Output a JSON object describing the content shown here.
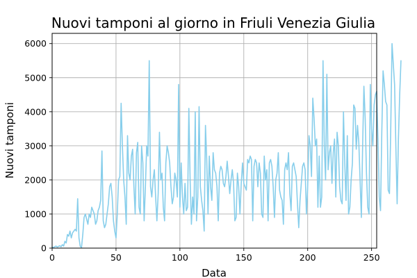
{
  "chart_data": {
    "type": "line",
    "title": "Nuovi tamponi al giorno in Friuli Venezia Giulia",
    "xlabel": "Data",
    "ylabel": "Nuovi tamponi",
    "xlim": [
      0,
      254
    ],
    "ylim": [
      0,
      6300
    ],
    "xticks": [
      0,
      50,
      100,
      150,
      200,
      250
    ],
    "yticks": [
      0,
      1000,
      2000,
      3000,
      4000,
      5000,
      6000
    ],
    "grid": true,
    "color": "#87ceeb",
    "series": [
      {
        "values": [
          30,
          20,
          40,
          60,
          30,
          50,
          70,
          40,
          100,
          60,
          200,
          150,
          400,
          350,
          500,
          300,
          450,
          500,
          550,
          500,
          1450,
          300,
          50,
          20,
          400,
          900,
          1000,
          850,
          700,
          1000,
          900,
          1200,
          1100,
          1000,
          700,
          800,
          1100,
          1200,
          1400,
          2850,
          800,
          600,
          700,
          1000,
          1300,
          1800,
          1900,
          1500,
          800,
          500,
          300,
          1000,
          2000,
          2100,
          4250,
          3000,
          2000,
          1500,
          700,
          3300,
          2200,
          2000,
          2700,
          2900,
          1800,
          1000,
          2800,
          3100,
          1200,
          1000,
          3000,
          2500,
          800,
          1800,
          3000,
          2700,
          5500,
          1800,
          1500,
          2000,
          2300,
          1500,
          800,
          1600,
          3400,
          2000,
          2200,
          1200,
          800,
          2500,
          3000,
          2800,
          2500,
          1800,
          1300,
          1500,
          2200,
          2000,
          1500,
          4800,
          1200,
          2500,
          1500,
          1000,
          1900,
          1100,
          1200,
          4100,
          2000,
          700,
          1500,
          1000,
          4000,
          800,
          1500,
          4150,
          1800,
          1400,
          1100,
          500,
          3600,
          2600,
          1000,
          2700,
          1800,
          1400,
          2800,
          2300,
          2200,
          1800,
          800,
          2200,
          2400,
          2300,
          1900,
          1800,
          2100,
          2550,
          2100,
          1600,
          2000,
          2300,
          1900,
          800,
          900,
          2200,
          1800,
          1000,
          1900,
          2500,
          1900,
          1800,
          1700,
          2600,
          2500,
          2700,
          2600,
          800,
          2400,
          2600,
          2500,
          1800,
          2500,
          2200,
          1000,
          900,
          2700,
          2000,
          2300,
          800,
          2500,
          2600,
          2400,
          1800,
          900,
          2000,
          2200,
          2800,
          1700,
          1500,
          1400,
          700,
          2300,
          2500,
          2300,
          2800,
          1600,
          1100,
          2400,
          2500,
          2300,
          2100,
          1300,
          600,
          1400,
          1900,
          2400,
          2500,
          2300,
          1000,
          1800,
          3300,
          3000,
          2100,
          4400,
          3800,
          3000,
          3200,
          1200,
          2700,
          1200,
          1500,
          5500,
          3000,
          2000,
          5100,
          2300,
          2800,
          3000,
          1900,
          2800,
          3200,
          1500,
          3400,
          3000,
          1800,
          1400,
          1300,
          4000,
          2500,
          1400,
          3300,
          1000,
          1200,
          2000,
          2500,
          4200,
          4100,
          2900,
          3600,
          3100,
          2000,
          900,
          3000,
          4750,
          3800,
          2200,
          1200,
          1000,
          4800,
          3500,
          3000,
          4200,
          4500,
          4600,
          3200,
          1500,
          1100,
          3400,
          5200,
          4800,
          4300,
          4200,
          1700,
          1600,
          3500,
          6000,
          5400,
          4800,
          3000,
          1300,
          3200,
          4500,
          5500
        ]
      }
    ]
  }
}
